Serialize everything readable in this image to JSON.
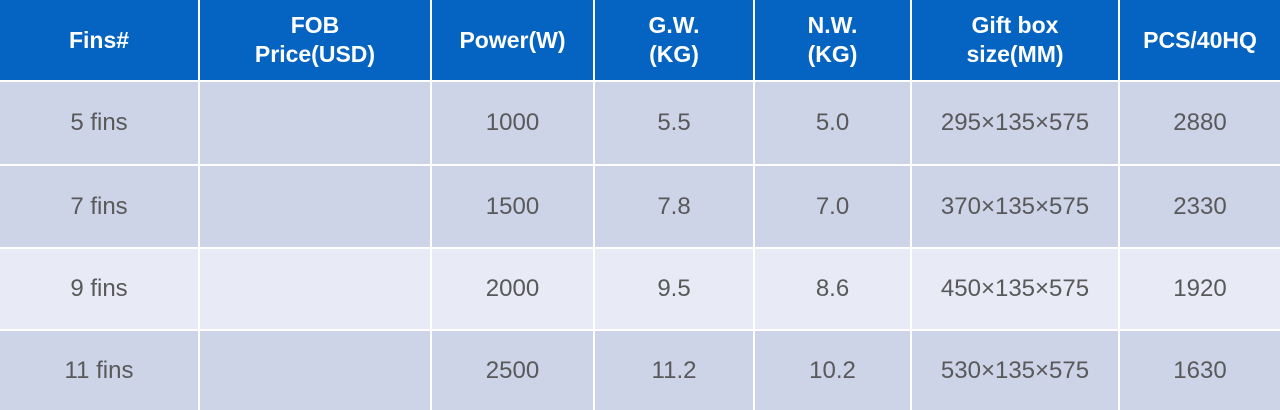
{
  "table": {
    "headers": [
      "Fins#",
      "FOB Price(USD)",
      "Power(W)",
      "G.W.(KG)",
      "N.W.(KG)",
      "Gift box size(MM)",
      "PCS/40HQ"
    ],
    "rows": [
      [
        "5 fins",
        null,
        "1000",
        "5.5",
        "5.0",
        "295×135×575",
        "2880"
      ],
      [
        "7 fins",
        null,
        "1500",
        "7.8",
        "7.0",
        "370×135×575",
        "2330"
      ],
      [
        "9 fins",
        null,
        "2000",
        "9.5",
        "8.6",
        "450×135×575",
        "1920"
      ],
      [
        "11 fins",
        null,
        "2500",
        "11.2",
        "10.2",
        "530×135×575",
        "1630"
      ]
    ]
  }
}
